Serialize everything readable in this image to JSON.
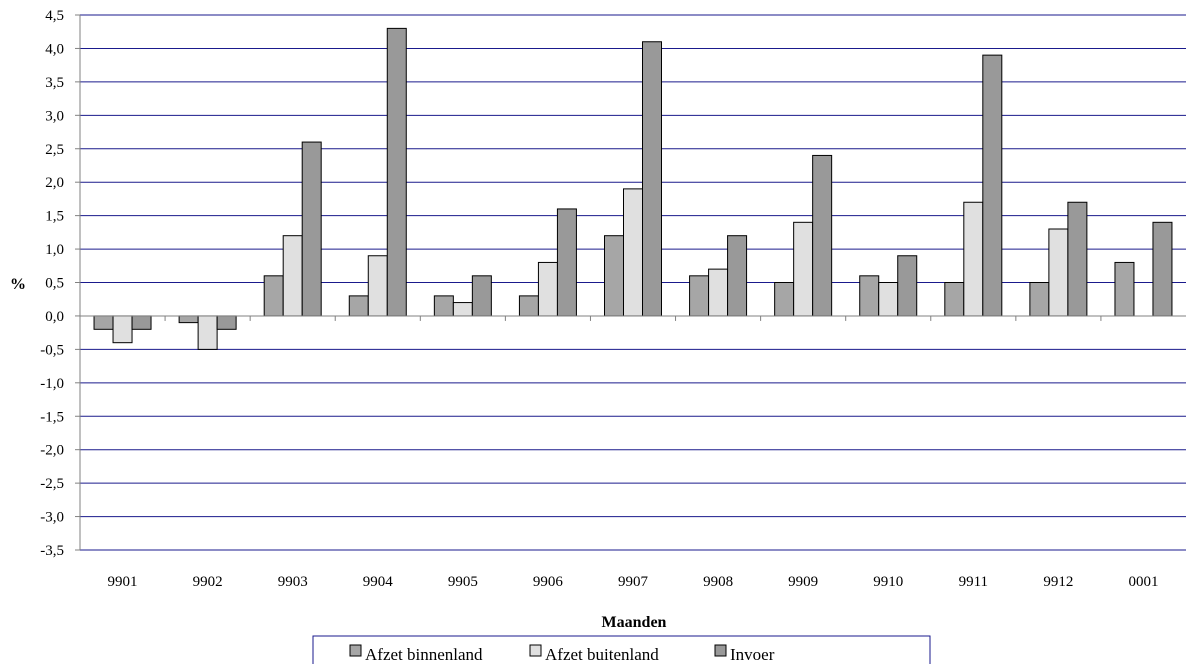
{
  "chart_data": {
    "type": "bar",
    "title": "",
    "xlabel": "Maanden",
    "ylabel": "%",
    "ylim": [
      -3.5,
      4.5
    ],
    "ytick_step": 0.5,
    "ytick_labels": [
      "4,5",
      "4,0",
      "3,5",
      "3,0",
      "2,5",
      "2,0",
      "1,5",
      "1,0",
      "0,5",
      "0,0",
      "-0,5",
      "-1,0",
      "-1,5",
      "-2,0",
      "-2,5",
      "-3,0",
      "-3,5"
    ],
    "grid": true,
    "legend_position": "bottom",
    "categories": [
      "9901",
      "9902",
      "9903",
      "9904",
      "9905",
      "9906",
      "9907",
      "9908",
      "9909",
      "9910",
      "9911",
      "9912",
      "0001"
    ],
    "series": [
      {
        "name": "Afzet binnenland",
        "color": "#a6a6a6",
        "values": [
          -0.2,
          -0.1,
          0.6,
          0.3,
          0.3,
          0.3,
          1.2,
          0.6,
          0.5,
          0.6,
          0.5,
          0.5,
          0.8
        ]
      },
      {
        "name": "Afzet buitenland",
        "color": "#e0e0e0",
        "values": [
          -0.4,
          -0.5,
          1.2,
          0.9,
          0.2,
          0.8,
          1.9,
          0.7,
          1.4,
          0.5,
          1.7,
          1.3,
          null
        ]
      },
      {
        "name": "Invoer",
        "color": "#999999",
        "values": [
          -0.2,
          -0.2,
          2.6,
          4.3,
          0.6,
          1.6,
          4.1,
          1.2,
          2.4,
          0.9,
          3.9,
          1.7,
          1.4
        ]
      }
    ],
    "gridline_color": "#1a1a8c",
    "axis_color": "#808080"
  }
}
